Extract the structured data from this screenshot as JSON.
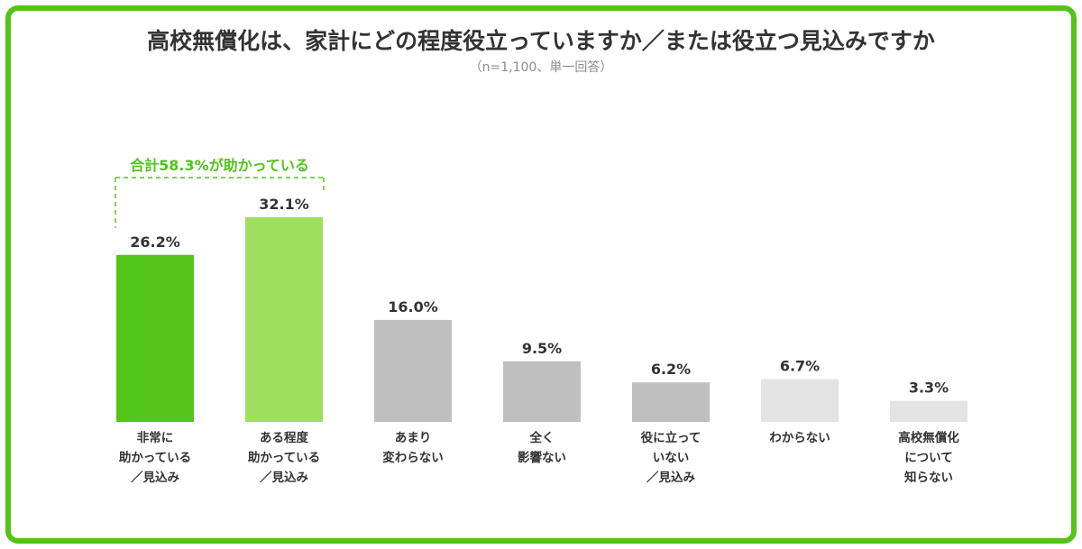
{
  "chart_data": {
    "type": "bar",
    "title": "高校無償化は、家計にどの程度役立っていますか／または役立つ見込みですか",
    "subtitle": "（n=1,100、単一回答）",
    "categories": [
      [
        "非常に",
        "助かっている",
        "／見込み"
      ],
      [
        "ある程度",
        "助かっている",
        "／見込み"
      ],
      [
        "あまり",
        "変わらない"
      ],
      [
        "全く",
        "影響ない"
      ],
      [
        "役に立って",
        "いない",
        "／見込み"
      ],
      [
        "わからない"
      ],
      [
        "高校無償化",
        "について",
        "知らない"
      ]
    ],
    "values": [
      26.2,
      32.1,
      16.0,
      9.5,
      6.2,
      6.7,
      3.3
    ],
    "value_labels": [
      "26.2%",
      "32.1%",
      "16.0%",
      "9.5%",
      "6.2%",
      "6.7%",
      "3.3%"
    ],
    "bar_colors": [
      "#52c41a",
      "#9ee05e",
      "#bfbfbf",
      "#bfbfbf",
      "#bfbfbf",
      "#e3e3e3",
      "#e3e3e3"
    ],
    "annotation": {
      "text": "合計58.3%が助かっている",
      "color": "#52c41a",
      "bars": [
        0,
        1
      ]
    },
    "xlabel": "",
    "ylabel": "",
    "grid": false
  },
  "colors": {
    "frame": "#52c41a",
    "title": "#333333",
    "subtitle": "#8c8c8c"
  }
}
